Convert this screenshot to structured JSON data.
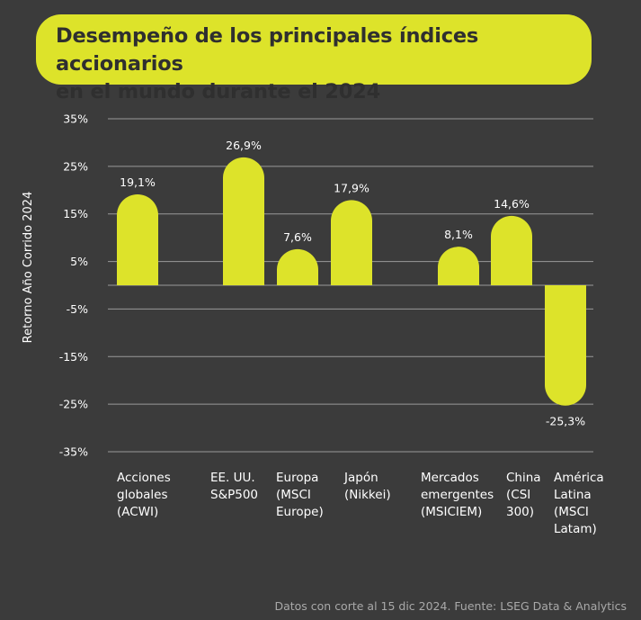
{
  "title": {
    "line1": "Desempeño de los principales índices accionarios",
    "line2": "en el mundo durante el 2024"
  },
  "footer": "Datos con corte al 15 dic 2024. Fuente: LSEG Data & Analytics",
  "colors": {
    "accent": "#dde32a",
    "background": "#3b3b3b",
    "text": "#ffffff",
    "grid": "#9a9a9a"
  },
  "chart_data": {
    "type": "bar",
    "title": "Desempeño de los principales índices accionarios en el mundo durante el 2024",
    "xlabel": "",
    "ylabel": "Retorno Año Corrido 2024",
    "ylim": [
      -35,
      35
    ],
    "yticks": [
      35,
      25,
      15,
      5,
      -5,
      -15,
      -25,
      -35
    ],
    "ytick_labels": [
      "35%",
      "25%",
      "15%",
      "5%",
      "-5%",
      "-15%",
      "-25%",
      "-35%"
    ],
    "grid": true,
    "legend": "none",
    "categories": [
      [
        "Acciones",
        "globales",
        "(ACWI)"
      ],
      [
        "EE. UU.",
        "S&P500"
      ],
      [
        "Europa",
        "(MSCI",
        "Europe)"
      ],
      [
        "Japón",
        "(Nikkei)"
      ],
      [
        "Mercados",
        "emergentes",
        "(MSICIEM)"
      ],
      [
        "China",
        "(CSI",
        "300)"
      ],
      [
        "América",
        "Latina",
        "(MSCI",
        "Latam)"
      ]
    ],
    "values": [
      19.1,
      26.9,
      7.6,
      17.9,
      8.1,
      14.6,
      -25.3
    ],
    "data_labels": [
      "19,1%",
      "26,9%",
      "7,6%",
      "17,9%",
      "8,1%",
      "14,6%",
      "-25,3%"
    ]
  }
}
